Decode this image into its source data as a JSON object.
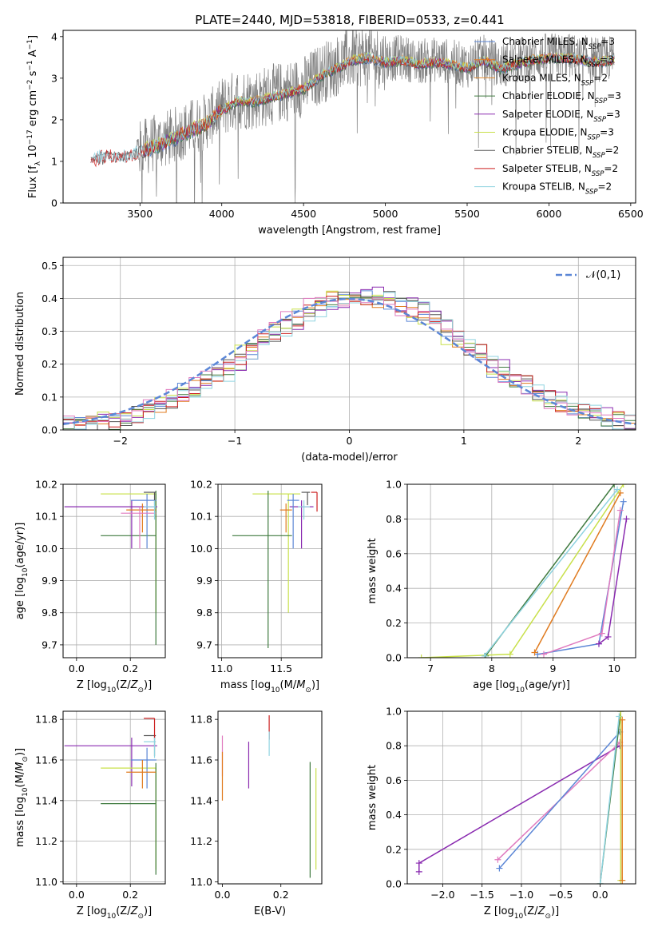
{
  "figure": {
    "title": "PLATE=2440, MJD=53818, FIBERID=0533, z=0.441"
  },
  "colors": {
    "Chabrier MILES": "#5b86d6",
    "Salpeter MILES": "#e07b1f",
    "Kroupa MILES": "#e0892e",
    "Chabrier ELODIE": "#3f7a3f",
    "Salpeter ELODIE": "#8a2bb0",
    "Kroupa ELODIE": "#c8e04a",
    "Chabrier STELIB": "#555555",
    "Salpeter STELIB": "#cc1f1f",
    "Kroupa STELIB": "#8fd3e0",
    "pink": "#e07bbf",
    "data": "#808080",
    "gaussian": "#5b86d6"
  },
  "chart_data": [
    {
      "id": "spectrum",
      "type": "line",
      "title": "PLATE=2440, MJD=53818, FIBERID=0533, z=0.441",
      "xlabel": "wavelength [Angstrom, rest frame]",
      "ylabel": "Flux [f_λ 10^-17 erg cm^-2 s^-1 A^-1]",
      "xlim": [
        3030,
        6530
      ],
      "ylim": [
        0,
        4.15
      ],
      "xticks": [
        3500,
        4000,
        4500,
        5000,
        5500,
        6000,
        6500
      ],
      "yticks": [
        0,
        1,
        2,
        3,
        4
      ],
      "legend_position": "top-right",
      "legend": [
        "Chabrier MILES, N_SSP=3",
        "Salpeter MILES, N_SSP=3",
        "Kroupa MILES, N_SSP=2",
        "Chabrier ELODIE, N_SSP=3",
        "Salpeter ELODIE, N_SSP=3",
        "Kroupa ELODIE, N_SSP=3",
        "Chabrier STELIB, N_SSP=2",
        "Salpeter STELIB, N_SSP=2",
        "Kroupa STELIB, N_SSP=2"
      ],
      "continuum": {
        "x": [
          3200,
          3250,
          3300,
          3400,
          3500,
          3600,
          3700,
          3800,
          3900,
          4000,
          4100,
          4200,
          4300,
          4400,
          4500,
          4600,
          4700,
          4800,
          4900,
          5000,
          5100,
          5200,
          5300,
          5400,
          5500,
          5600,
          5700,
          5800,
          5900,
          6000,
          6100,
          6200,
          6300,
          6400
        ],
        "y": [
          1.05,
          1.15,
          1.2,
          1.15,
          1.3,
          1.45,
          1.6,
          1.8,
          1.95,
          2.3,
          2.5,
          2.5,
          2.6,
          2.7,
          2.8,
          3.1,
          3.3,
          3.5,
          3.55,
          3.45,
          3.5,
          3.4,
          3.45,
          3.4,
          3.3,
          3.5,
          3.3,
          3.4,
          3.5,
          3.55,
          3.55,
          3.5,
          3.45,
          3.5
        ]
      }
    },
    {
      "id": "residuals",
      "type": "line",
      "xlabel": "(data-model)/error",
      "ylabel": "Normed distribution",
      "xlim": [
        -2.5,
        2.5
      ],
      "ylim": [
        0,
        0.525
      ],
      "xticks": [
        -2,
        -1,
        0,
        1,
        2
      ],
      "yticks": [
        0.0,
        0.1,
        0.2,
        0.3,
        0.4,
        0.5
      ],
      "grid": true,
      "legend_position": "top-right",
      "legend": [
        "𝒩(0,1)"
      ],
      "gaussian": {
        "mean": 0,
        "sigma": 1
      }
    },
    {
      "id": "age_vs_Z",
      "type": "scatter",
      "xlabel": "Z [log10(Z/Z⊙)]",
      "ylabel": "age  [log10(age/yr)]",
      "xlim": [
        -0.05,
        0.33
      ],
      "ylim": [
        9.66,
        10.2
      ],
      "xticks": [
        0.0,
        0.2
      ],
      "yticks": [
        9.7,
        9.8,
        9.9,
        10.0,
        10.1,
        10.2
      ],
      "grid": true,
      "points": [
        {
          "model": "Kroupa ELODIE",
          "x": 0.295,
          "y": 10.17,
          "xerr": [
            0.205,
            0.0
          ],
          "yerr": [
            0.37,
            0.0
          ]
        },
        {
          "model": "Chabrier ELODIE",
          "x": 0.295,
          "y": 10.04,
          "xerr": [
            0.205,
            0.0
          ],
          "yerr": [
            0.34,
            0.14
          ]
        },
        {
          "model": "Salpeter ELODIE",
          "x": 0.205,
          "y": 10.13,
          "xerr": [
            0.25,
            0.095
          ],
          "yerr": [
            0.13,
            0.02
          ]
        },
        {
          "model": "Chabrier MILES",
          "x": 0.262,
          "y": 10.15,
          "xerr": [
            0.06,
            0.035
          ],
          "yerr": [
            0.15,
            0.02
          ]
        },
        {
          "model": "Salpeter MILES",
          "x": 0.245,
          "y": 10.12,
          "xerr": [
            0.06,
            0.05
          ],
          "yerr": [
            0.07,
            0.02
          ]
        },
        {
          "model": "pink",
          "x": 0.235,
          "y": 10.11,
          "xerr": [
            0.07,
            0.06
          ],
          "yerr": [
            0.11,
            0.02
          ]
        },
        {
          "model": "Chabrier STELIB",
          "x": 0.29,
          "y": 10.175,
          "xerr": [
            0.04,
            0.005
          ],
          "yerr": [
            0.04,
            0.0
          ]
        },
        {
          "model": "Kroupa STELIB",
          "x": 0.29,
          "y": 10.13,
          "xerr": [
            0.04,
            0.005
          ],
          "yerr": [
            0.04,
            0.02
          ]
        }
      ]
    },
    {
      "id": "age_vs_mass",
      "type": "scatter",
      "xlabel": "mass [log10(M/M⊙)]",
      "ylabel": "",
      "xlim": [
        10.97,
        11.84
      ],
      "ylim": [
        9.66,
        10.2
      ],
      "xticks": [
        11.0,
        11.5
      ],
      "yticks": [
        9.7,
        9.8,
        9.9,
        10.0,
        10.1,
        10.2
      ],
      "grid": true,
      "points": [
        {
          "model": "Kroupa ELODIE",
          "x": 11.56,
          "y": 10.17,
          "xerr": [
            0.3,
            0.1
          ],
          "yerr": [
            0.37,
            0.0
          ]
        },
        {
          "model": "Chabrier ELODIE",
          "x": 11.39,
          "y": 10.04,
          "xerr": [
            0.3,
            0.2
          ],
          "yerr": [
            0.35,
            0.14
          ]
        },
        {
          "model": "Salpeter ELODIE",
          "x": 11.67,
          "y": 10.13,
          "xerr": [
            0.1,
            0.1
          ],
          "yerr": [
            0.13,
            0.02
          ]
        },
        {
          "model": "Chabrier MILES",
          "x": 11.6,
          "y": 10.15,
          "xerr": [
            0.05,
            0.05
          ],
          "yerr": [
            0.15,
            0.02
          ]
        },
        {
          "model": "Salpeter MILES",
          "x": 11.54,
          "y": 10.12,
          "xerr": [
            0.05,
            0.05
          ],
          "yerr": [
            0.07,
            0.02
          ]
        },
        {
          "model": "Chabrier STELIB",
          "x": 11.72,
          "y": 10.175,
          "xerr": [
            0.05,
            0.02
          ],
          "yerr": [
            0.04,
            0.0
          ]
        },
        {
          "model": "Salpeter STELIB",
          "x": 11.8,
          "y": 10.175,
          "xerr": [
            0.05,
            0.0
          ],
          "yerr": [
            0.06,
            0.0
          ]
        },
        {
          "model": "Kroupa STELIB",
          "x": 11.69,
          "y": 10.13,
          "xerr": [
            0.05,
            0.05
          ],
          "yerr": [
            0.04,
            0.02
          ]
        }
      ]
    },
    {
      "id": "massweight_vs_age",
      "type": "line",
      "xlabel": "age  [log10(age/yr)]",
      "ylabel": "mass weight",
      "xlim": [
        6.62,
        10.35
      ],
      "ylim": [
        0,
        1
      ],
      "xticks": [
        7,
        8,
        9,
        10
      ],
      "yticks": [
        0.0,
        0.2,
        0.4,
        0.6,
        0.8,
        1.0
      ],
      "grid": true,
      "series": [
        {
          "model": "Chabrier MILES",
          "x": [
            8.75,
            9.75,
            10.15
          ],
          "y": [
            0.02,
            0.08,
            0.9
          ]
        },
        {
          "model": "Salpeter MILES",
          "x": [
            8.7,
            10.1
          ],
          "y": [
            0.03,
            0.95
          ]
        },
        {
          "model": "Kroupa ELODIE",
          "x": [
            6.85,
            8.3,
            10.15
          ],
          "y": [
            0.0,
            0.02,
            1.0
          ]
        },
        {
          "model": "Chabrier ELODIE",
          "x": [
            7.9,
            10.0
          ],
          "y": [
            0.01,
            1.0
          ]
        },
        {
          "model": "Kroupa STELIB",
          "x": [
            7.88,
            10.05
          ],
          "y": [
            0.01,
            0.97
          ]
        },
        {
          "model": "pink",
          "x": [
            8.85,
            9.8,
            10.1
          ],
          "y": [
            0.02,
            0.14,
            0.85
          ]
        },
        {
          "model": "Salpeter ELODIE",
          "x": [
            9.75,
            9.9,
            10.2
          ],
          "y": [
            0.08,
            0.12,
            0.8
          ]
        }
      ]
    },
    {
      "id": "mass_vs_Z",
      "type": "scatter",
      "xlabel": "Z [log10(Z/Z⊙)]",
      "ylabel": "mass [log10(M/M⊙)]",
      "xlim": [
        -0.05,
        0.33
      ],
      "ylim": [
        10.99,
        11.84
      ],
      "xticks": [
        0.0,
        0.2
      ],
      "yticks": [
        11.0,
        11.2,
        11.4,
        11.6,
        11.8
      ],
      "grid": true,
      "points": [
        {
          "model": "Salpeter ELODIE",
          "x": 0.205,
          "y": 11.67,
          "xerr": [
            0.25,
            0.095
          ],
          "yerr": [
            0.2,
            0.04
          ]
        },
        {
          "model": "Kroupa ELODIE",
          "x": 0.295,
          "y": 11.56,
          "xerr": [
            0.205,
            0.0
          ],
          "yerr": [
            0.5,
            0.0
          ]
        },
        {
          "model": "Chabrier ELODIE",
          "x": 0.295,
          "y": 11.385,
          "xerr": [
            0.205,
            0.0
          ],
          "yerr": [
            0.35,
            0.2
          ]
        },
        {
          "model": "Chabrier MILES",
          "x": 0.262,
          "y": 11.6,
          "xerr": [
            0.06,
            0.035
          ],
          "yerr": [
            0.14,
            0.06
          ]
        },
        {
          "model": "Salpeter MILES",
          "x": 0.245,
          "y": 11.54,
          "xerr": [
            0.06,
            0.05
          ],
          "yerr": [
            0.08,
            0.06
          ]
        },
        {
          "model": "Chabrier STELIB",
          "x": 0.29,
          "y": 11.72,
          "xerr": [
            0.04,
            0.005
          ],
          "yerr": [
            0.1,
            0.0
          ]
        },
        {
          "model": "Salpeter STELIB",
          "x": 0.29,
          "y": 11.805,
          "xerr": [
            0.04,
            0.0
          ],
          "yerr": [
            0.1,
            0.0
          ]
        },
        {
          "model": "Kroupa STELIB",
          "x": 0.29,
          "y": 11.69,
          "xerr": [
            0.04,
            0.005
          ],
          "yerr": [
            0.08,
            0.02
          ]
        }
      ]
    },
    {
      "id": "mass_vs_EBV",
      "type": "scatter",
      "xlabel": "E(B-V)",
      "ylabel": "",
      "xlim": [
        -0.015,
        0.34
      ],
      "ylim": [
        10.99,
        11.84
      ],
      "xticks": [
        0.0,
        0.2
      ],
      "yticks": [
        11.0,
        11.2,
        11.4,
        11.6,
        11.8
      ],
      "grid": false,
      "points": [
        {
          "model": "pink",
          "x": 0.0,
          "y": 11.62,
          "yerr": [
            0.1,
            0.1
          ]
        },
        {
          "model": "Salpeter MILES",
          "x": 0.0,
          "y": 11.52,
          "yerr": [
            0.12,
            0.12
          ]
        },
        {
          "model": "Salpeter ELODIE",
          "x": 0.09,
          "y": 11.58,
          "yerr": [
            0.12,
            0.11
          ]
        },
        {
          "model": "Salpeter STELIB",
          "x": 0.16,
          "y": 11.76,
          "yerr": [
            0.06,
            0.06
          ]
        },
        {
          "model": "Kroupa STELIB",
          "x": 0.16,
          "y": 11.68,
          "yerr": [
            0.06,
            0.06
          ]
        },
        {
          "model": "Chabrier ELODIE",
          "x": 0.3,
          "y": 11.3,
          "yerr": [
            0.28,
            0.29
          ]
        },
        {
          "model": "Kroupa ELODIE",
          "x": 0.32,
          "y": 11.31,
          "yerr": [
            0.25,
            0.25
          ]
        }
      ]
    },
    {
      "id": "massweight_vs_Z",
      "type": "line",
      "xlabel": "Z [log10(Z/Z⊙)]",
      "ylabel": "mass weight",
      "xlim": [
        -2.45,
        0.45
      ],
      "ylim": [
        0,
        1
      ],
      "xticks": [
        -2.0,
        -1.5,
        -1.0,
        -0.5,
        0.0
      ],
      "yticks": [
        0.0,
        0.2,
        0.4,
        0.6,
        0.8,
        1.0
      ],
      "grid": true,
      "series": [
        {
          "model": "Salpeter ELODIE",
          "x": [
            -2.3,
            -2.3,
            0.25
          ],
          "y": [
            0.07,
            0.12,
            0.8
          ]
        },
        {
          "model": "pink",
          "x": [
            -1.3,
            0.25
          ],
          "y": [
            0.14,
            0.82
          ]
        },
        {
          "model": "Chabrier MILES",
          "x": [
            -1.28,
            0.25
          ],
          "y": [
            0.09,
            0.88
          ]
        },
        {
          "model": "Chabrier ELODIE",
          "x": [
            0.0,
            0.26
          ],
          "y": [
            0.0,
            1.0
          ]
        },
        {
          "model": "Kroupa STELIB",
          "x": [
            0.0,
            0.24
          ],
          "y": [
            0.0,
            0.97
          ]
        },
        {
          "model": "Kroupa ELODIE",
          "x": [
            0.26,
            0.26
          ],
          "y": [
            0.02,
            1.0
          ]
        },
        {
          "model": "Salpeter MILES",
          "x": [
            0.28,
            0.28
          ],
          "y": [
            0.02,
            0.95
          ]
        }
      ]
    }
  ]
}
